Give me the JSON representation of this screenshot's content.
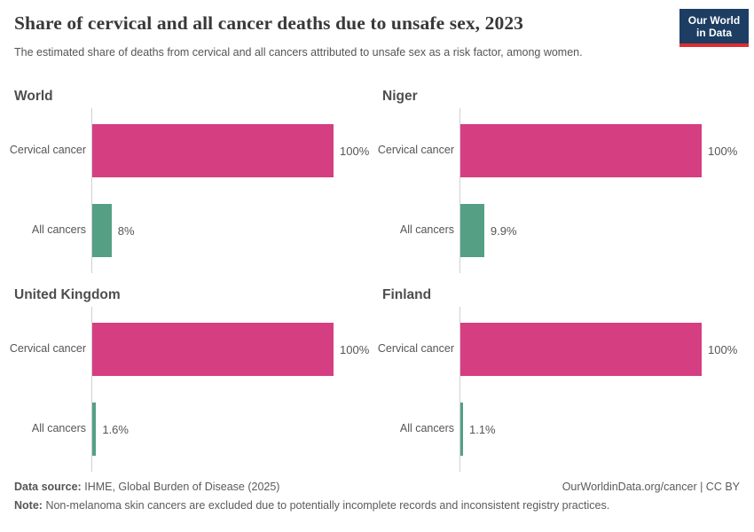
{
  "header": {
    "title": "Share of cervical and all cancer deaths due to unsafe sex, 2023",
    "subtitle": "The estimated share of deaths from cervical and all cancers attributed to unsafe sex as a risk factor, among women.",
    "logo_line1": "Our World",
    "logo_line2": "in Data"
  },
  "colors": {
    "cervical_bar": "#d63e82",
    "all_cancers_bar": "#55a085",
    "logo_background": "#1d3d63",
    "logo_stripe": "#dc2e32",
    "axis_line": "#cfcfcf"
  },
  "chart_data": [
    {
      "type": "bar",
      "orientation": "horizontal",
      "title": "World",
      "categories": [
        "Cervical cancer",
        "All cancers"
      ],
      "values": [
        100,
        8
      ],
      "value_labels": [
        "100%",
        "8%"
      ],
      "xlim": [
        0,
        100
      ],
      "unit": "%"
    },
    {
      "type": "bar",
      "orientation": "horizontal",
      "title": "Niger",
      "categories": [
        "Cervical cancer",
        "All cancers"
      ],
      "values": [
        100,
        9.9
      ],
      "value_labels": [
        "100%",
        "9.9%"
      ],
      "xlim": [
        0,
        100
      ],
      "unit": "%"
    },
    {
      "type": "bar",
      "orientation": "horizontal",
      "title": "United Kingdom",
      "categories": [
        "Cervical cancer",
        "All cancers"
      ],
      "values": [
        100,
        1.6
      ],
      "value_labels": [
        "100%",
        "1.6%"
      ],
      "xlim": [
        0,
        100
      ],
      "unit": "%"
    },
    {
      "type": "bar",
      "orientation": "horizontal",
      "title": "Finland",
      "categories": [
        "Cervical cancer",
        "All cancers"
      ],
      "values": [
        100,
        1.1
      ],
      "value_labels": [
        "100%",
        "1.1%"
      ],
      "xlim": [
        0,
        100
      ],
      "unit": "%"
    }
  ],
  "footer": {
    "source_label": "Data source:",
    "source_text": "IHME, Global Burden of Disease (2025)",
    "rights": "OurWorldinData.org/cancer | CC BY",
    "note_label": "Note:",
    "note_text": "Non-melanoma skin cancers are excluded due to potentially incomplete records and inconsistent registry practices."
  }
}
